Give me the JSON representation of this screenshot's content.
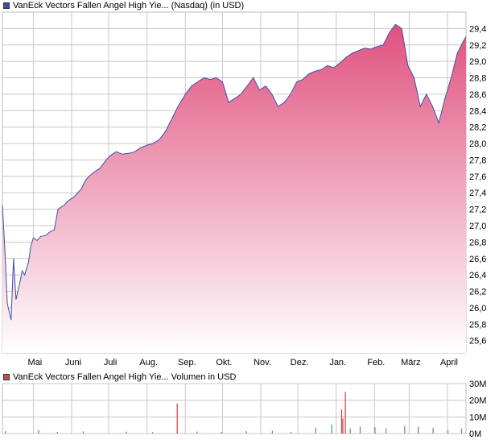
{
  "legend": {
    "price_label": "VanEck Vectors Fallen Angel High Yie... (Nasdaq) (in USD)",
    "volume_label": "VanEck Vectors Fallen Angel High Yie... Volumen in USD"
  },
  "colors": {
    "price_line": "#3d4fa8",
    "price_fill_top": "#e0517f",
    "price_fill_bottom": "#ffffff",
    "volume_up": "#43a843",
    "volume_down": "#d23a3a",
    "price_swatch": "#3d4fa8",
    "volume_swatch": "#c0504d",
    "grid": "#c8c8c8"
  },
  "chart_data": [
    {
      "type": "area",
      "title": "VanEck Vectors Fallen Angel High Yie... (Nasdaq) (in USD)",
      "ylim": [
        25.45,
        29.6
      ],
      "y_ticks": [
        25.6,
        25.8,
        26.0,
        26.2,
        26.4,
        26.6,
        26.8,
        27.0,
        27.2,
        27.4,
        27.6,
        27.8,
        28.0,
        28.2,
        28.4,
        28.6,
        28.8,
        29.0,
        29.2,
        29.4
      ],
      "y_tick_labels": [
        "25,6",
        "25,8",
        "26,0",
        "26,2",
        "26,4",
        "26,6",
        "26,8",
        "27,0",
        "27,2",
        "27,4",
        "27,6",
        "27,8",
        "28,0",
        "28,2",
        "28,4",
        "28,6",
        "28,8",
        "29,0",
        "29,2",
        "29,4"
      ],
      "x_tick_labels": [
        "Mai",
        "Juni",
        "Juli",
        "Aug.",
        "Sep.",
        "Okt.",
        "Nov.",
        "Dez.",
        "Jan.",
        "Feb.",
        "März",
        "April"
      ],
      "x_tick_dates": [
        "2020-05-01",
        "2020-06-01",
        "2020-07-01",
        "2020-08-01",
        "2020-09-01",
        "2020-10-01",
        "2020-11-01",
        "2020-12-01",
        "2021-01-01",
        "2021-02-01",
        "2021-03-01",
        "2021-04-01"
      ],
      "x_range": [
        "2020-04-06",
        "2021-04-16"
      ],
      "grid": true,
      "series": [
        {
          "x": [
            "2020-04-06",
            "2020-04-08",
            "2020-04-10",
            "2020-04-13",
            "2020-04-15",
            "2020-04-17",
            "2020-04-20",
            "2020-04-22",
            "2020-04-24",
            "2020-04-27",
            "2020-04-29",
            "2020-05-01",
            "2020-05-04",
            "2020-05-07",
            "2020-05-11",
            "2020-05-14",
            "2020-05-18",
            "2020-05-21",
            "2020-05-26",
            "2020-05-29",
            "2020-06-03",
            "2020-06-06",
            "2020-06-09",
            "2020-06-12",
            "2020-06-15",
            "2020-06-19",
            "2020-06-24",
            "2020-06-29",
            "2020-07-02",
            "2020-07-07",
            "2020-07-12",
            "2020-07-17",
            "2020-07-22",
            "2020-07-27",
            "2020-08-01",
            "2020-08-06",
            "2020-08-11",
            "2020-08-16",
            "2020-08-21",
            "2020-08-26",
            "2020-09-01",
            "2020-09-06",
            "2020-09-11",
            "2020-09-16",
            "2020-09-21",
            "2020-09-26",
            "2020-10-01",
            "2020-10-06",
            "2020-10-11",
            "2020-10-16",
            "2020-10-21",
            "2020-10-26",
            "2020-10-31",
            "2020-11-05",
            "2020-11-10",
            "2020-11-15",
            "2020-11-20",
            "2020-11-25",
            "2020-11-30",
            "2020-12-05",
            "2020-12-10",
            "2020-12-15",
            "2020-12-20",
            "2020-12-25",
            "2020-12-30",
            "2021-01-04",
            "2021-01-09",
            "2021-01-14",
            "2021-01-19",
            "2021-01-24",
            "2021-01-29",
            "2021-02-03",
            "2021-02-08",
            "2021-02-13",
            "2021-02-18",
            "2021-02-23",
            "2021-02-28",
            "2021-03-05",
            "2021-03-10",
            "2021-03-15",
            "2021-03-20",
            "2021-03-25",
            "2021-03-30",
            "2021-04-04",
            "2021-04-09",
            "2021-04-14",
            "2021-04-16"
          ],
          "y": [
            27.25,
            26.7,
            26.05,
            25.85,
            26.6,
            26.1,
            26.3,
            26.45,
            26.4,
            26.55,
            26.75,
            26.85,
            26.82,
            26.87,
            26.88,
            26.92,
            26.95,
            27.2,
            27.25,
            27.3,
            27.35,
            27.4,
            27.45,
            27.55,
            27.6,
            27.65,
            27.7,
            27.8,
            27.85,
            27.9,
            27.87,
            27.88,
            27.9,
            27.95,
            27.98,
            28.0,
            28.05,
            28.15,
            28.3,
            28.45,
            28.6,
            28.7,
            28.75,
            28.8,
            28.78,
            28.8,
            28.75,
            28.5,
            28.55,
            28.6,
            28.7,
            28.8,
            28.65,
            28.7,
            28.6,
            28.45,
            28.5,
            28.6,
            28.75,
            28.78,
            28.85,
            28.88,
            28.9,
            28.95,
            28.92,
            28.98,
            29.05,
            29.1,
            29.13,
            29.16,
            29.15,
            29.18,
            29.2,
            29.35,
            29.45,
            29.4,
            28.95,
            28.8,
            28.45,
            28.6,
            28.45,
            28.25,
            28.55,
            28.8,
            29.1,
            29.25,
            29.3
          ]
        }
      ]
    },
    {
      "type": "bar",
      "title": "VanEck Vectors Fallen Angel High Yie... Volumen in USD",
      "ylim": [
        0,
        30
      ],
      "y_ticks": [
        0,
        10,
        20,
        30
      ],
      "y_tick_labels": [
        "0M",
        "10M",
        "20M",
        "30M"
      ],
      "series": [
        {
          "name": "Volumen in USD",
          "x": [
            "2020-04-08",
            "2020-05-05",
            "2020-05-20",
            "2020-06-10",
            "2020-07-15",
            "2020-08-05",
            "2020-08-25",
            "2020-09-10",
            "2020-09-30",
            "2020-10-20",
            "2020-11-10",
            "2020-11-25",
            "2020-12-15",
            "2020-12-28",
            "2021-01-05",
            "2021-01-06",
            "2021-01-08",
            "2021-01-12",
            "2021-01-20",
            "2021-02-01",
            "2021-02-10",
            "2021-02-25",
            "2021-03-08",
            "2021-03-20",
            "2021-04-01",
            "2021-04-12"
          ],
          "values": [
            1.5,
            2.2,
            1.0,
            1.3,
            1.1,
            0.8,
            18.0,
            1.2,
            1.0,
            1.4,
            1.6,
            1.0,
            3.5,
            5.5,
            14.5,
            9.0,
            25.0,
            3.0,
            4.2,
            3.8,
            3.2,
            4.5,
            4.0,
            3.5,
            2.0,
            3.0
          ]
        }
      ]
    }
  ]
}
